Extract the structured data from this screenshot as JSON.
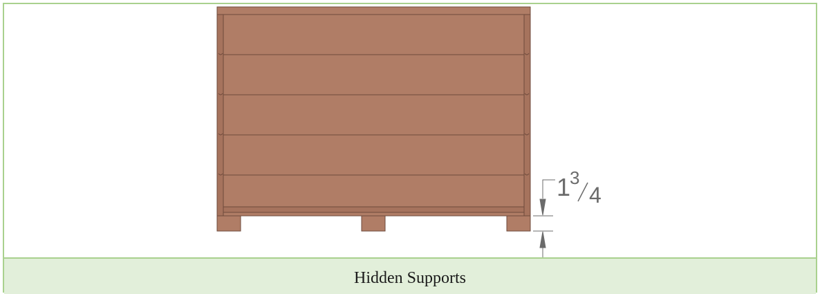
{
  "caption": {
    "text": "Hidden Supports"
  },
  "dimension": {
    "whole": "1",
    "numerator": "3",
    "denominator": "4"
  },
  "colors": {
    "frame_border": "#a9d18e",
    "caption_background": "#e2efda",
    "wood": "#b07d66",
    "wood_dark": "#a6735d",
    "wood_line": "#6e4a3c",
    "dimension": "#6b6b6b"
  }
}
